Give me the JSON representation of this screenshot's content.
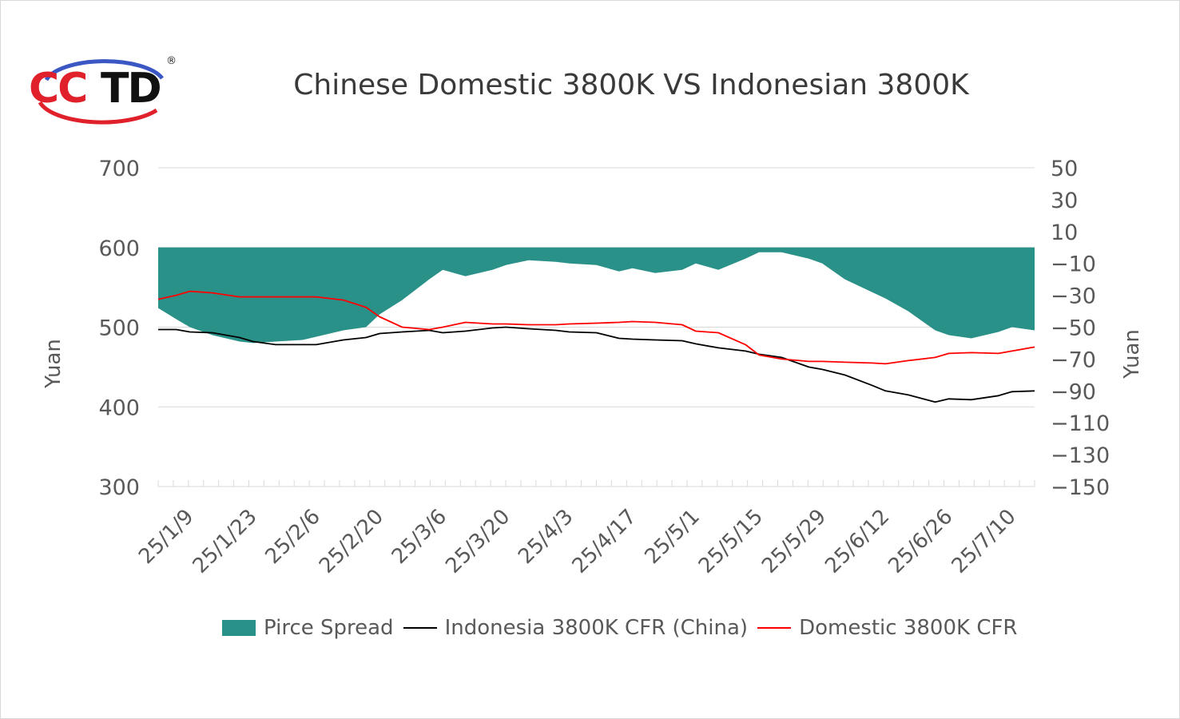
{
  "logo": {
    "text": "CCTD",
    "registered_mark": "®"
  },
  "chart_data": {
    "type": "line",
    "title": "Chinese Domestic 3800K VS Indonesian 3800K",
    "ylabel_left": "Yuan",
    "ylabel_right": "Yuan",
    "ylim_left": [
      300,
      700
    ],
    "ylim_right": [
      -150,
      50
    ],
    "yticks_left": [
      300,
      400,
      500,
      600,
      700
    ],
    "yticks_right": [
      50,
      30,
      10,
      -10,
      -30,
      -50,
      -70,
      -90,
      -110,
      -130,
      -150
    ],
    "x_tick_labels": [
      "25/1/9",
      "25/1/23",
      "25/2/6",
      "25/2/20",
      "25/3/6",
      "25/3/20",
      "25/4/3",
      "25/4/17",
      "25/5/1",
      "25/5/15",
      "25/5/29",
      "25/6/12",
      "25/6/26",
      "25/7/10"
    ],
    "x_range": [
      "25/1/2",
      "25/7/15"
    ],
    "grid": true,
    "legend_position": "bottom",
    "colors": {
      "spread": "#2a9189",
      "indonesia": "#000000",
      "domestic": "#ff0000",
      "grid": "#d9d9d9"
    },
    "series": [
      {
        "name": "Pirce Spread",
        "type": "area",
        "axis": "right",
        "x": [
          "25/1/2",
          "25/1/6",
          "25/1/9",
          "25/1/14",
          "25/1/20",
          "25/1/23",
          "25/1/28",
          "25/2/3",
          "25/2/6",
          "25/2/12",
          "25/2/17",
          "25/2/20",
          "25/2/25",
          "25/3/3",
          "25/3/6",
          "25/3/11",
          "25/3/17",
          "25/3/20",
          "25/3/25",
          "25/3/31",
          "25/4/3",
          "25/4/9",
          "25/4/14",
          "25/4/17",
          "25/4/22",
          "25/4/28",
          "25/5/1",
          "25/5/6",
          "25/5/12",
          "25/5/15",
          "25/5/20",
          "25/5/26",
          "25/5/29",
          "25/6/3",
          "25/6/9",
          "25/6/12",
          "25/6/17",
          "25/6/23",
          "25/6/26",
          "25/7/1",
          "25/7/7",
          "25/7/10",
          "25/7/15"
        ],
        "values": [
          -38,
          -45,
          -50,
          -55,
          -59,
          -60,
          -59,
          -58,
          -56,
          -52,
          -50,
          -42,
          -33,
          -20,
          -14,
          -18,
          -14,
          -11,
          -8,
          -9,
          -10,
          -11,
          -15,
          -13,
          -16,
          -14,
          -10,
          -14,
          -7,
          -3,
          -3,
          -7,
          -10,
          -20,
          -28,
          -32,
          -40,
          -52,
          -55,
          -57,
          -53,
          -50,
          -52
        ]
      },
      {
        "name": "Indonesia 3800K CFR (China)",
        "type": "line",
        "axis": "left",
        "x": [
          "25/1/2",
          "25/1/6",
          "25/1/9",
          "25/1/14",
          "25/1/20",
          "25/1/23",
          "25/1/28",
          "25/2/3",
          "25/2/6",
          "25/2/12",
          "25/2/17",
          "25/2/20",
          "25/2/25",
          "25/3/3",
          "25/3/6",
          "25/3/11",
          "25/3/17",
          "25/3/20",
          "25/3/25",
          "25/3/31",
          "25/4/3",
          "25/4/9",
          "25/4/14",
          "25/4/17",
          "25/4/22",
          "25/4/28",
          "25/5/1",
          "25/5/6",
          "25/5/12",
          "25/5/15",
          "25/5/20",
          "25/5/26",
          "25/5/29",
          "25/6/3",
          "25/6/9",
          "25/6/12",
          "25/6/17",
          "25/6/23",
          "25/6/26",
          "25/7/1",
          "25/7/7",
          "25/7/10",
          "25/7/15"
        ],
        "values": [
          497,
          497,
          494,
          493,
          487,
          482,
          478,
          478,
          478,
          484,
          487,
          492,
          494,
          496,
          493,
          495,
          499,
          500,
          498,
          496,
          494,
          493,
          486,
          485,
          484,
          483,
          479,
          474,
          470,
          466,
          462,
          450,
          447,
          440,
          427,
          420,
          415,
          406,
          410,
          409,
          414,
          419,
          420
        ]
      },
      {
        "name": "Domestic 3800K CFR",
        "type": "line",
        "axis": "left",
        "x": [
          "25/1/2",
          "25/1/6",
          "25/1/9",
          "25/1/14",
          "25/1/20",
          "25/1/23",
          "25/1/28",
          "25/2/3",
          "25/2/6",
          "25/2/12",
          "25/2/17",
          "25/2/20",
          "25/2/25",
          "25/3/3",
          "25/3/6",
          "25/3/11",
          "25/3/17",
          "25/3/20",
          "25/3/25",
          "25/3/31",
          "25/4/3",
          "25/4/9",
          "25/4/14",
          "25/4/17",
          "25/4/22",
          "25/4/28",
          "25/5/1",
          "25/5/6",
          "25/5/12",
          "25/5/15",
          "25/5/20",
          "25/5/26",
          "25/5/29",
          "25/6/3",
          "25/6/9",
          "25/6/12",
          "25/6/17",
          "25/6/23",
          "25/6/26",
          "25/7/1",
          "25/7/7",
          "25/7/10",
          "25/7/15"
        ],
        "values": [
          535,
          540,
          545,
          543,
          538,
          538,
          538,
          538,
          538,
          534,
          525,
          513,
          500,
          497,
          500,
          506,
          504,
          504,
          503,
          503,
          504,
          505,
          506,
          507,
          506,
          503,
          495,
          493,
          478,
          465,
          460,
          457,
          457,
          456,
          455,
          454,
          458,
          462,
          467,
          468,
          467,
          470,
          475
        ]
      }
    ]
  }
}
